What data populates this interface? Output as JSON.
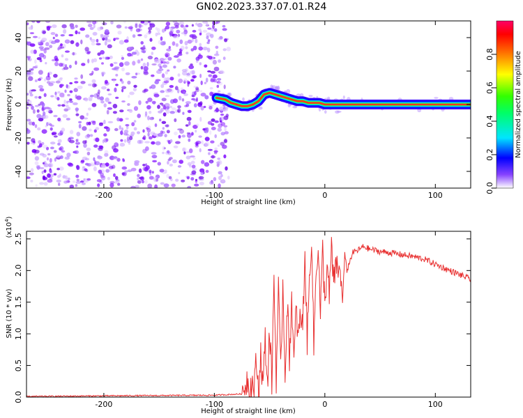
{
  "title": "GN02.2023.337.07.01.R24",
  "chart_data": [
    {
      "type": "heatmap",
      "xlabel": "Height of straight line (km)",
      "ylabel": "Frequency (Hz)",
      "xlim": [
        -270,
        132
      ],
      "ylim": [
        -50,
        50
      ],
      "x_ticks": [
        -200,
        -100,
        0,
        100
      ],
      "x_tick_labels": [
        "-200",
        "-100",
        "0",
        "100"
      ],
      "y_ticks": [
        -40,
        -20,
        0,
        20,
        40
      ],
      "y_tick_labels": [
        "-40",
        "-20",
        "0",
        "20",
        "40"
      ],
      "noise_region_x": [
        -270,
        -92
      ],
      "signal_trace": {
        "x": [
          -98,
          -90,
          -85,
          -80,
          -75,
          -70,
          -65,
          -60,
          -55,
          -50,
          -45,
          -40,
          -35,
          -30,
          -25,
          -20,
          -15,
          -10,
          -5,
          0,
          5,
          10,
          20,
          40,
          60,
          80,
          100,
          132
        ],
        "y": [
          4,
          3,
          1,
          0,
          -1,
          -1,
          0,
          2,
          6,
          7,
          6,
          5,
          4,
          3,
          2,
          2,
          1,
          1,
          1,
          0,
          0,
          0,
          0,
          0,
          0,
          0,
          0,
          0
        ]
      },
      "colorbar": {
        "label": "Normalized spectral amplitude",
        "range": [
          0.0,
          1.0
        ],
        "ticks": [
          0.0,
          0.2,
          0.4,
          0.6,
          0.8
        ],
        "tick_labels": [
          "0.0",
          "0.2",
          "0.4",
          "0.6",
          "0.8"
        ],
        "colors": [
          "#ffffff",
          "#6600ff",
          "#0000ff",
          "#00e5ff",
          "#00ff00",
          "#ffff00",
          "#ff8800",
          "#ff0000",
          "#ff0066"
        ]
      }
    },
    {
      "type": "line",
      "xlabel": "Height of straight line (km)",
      "ylabel": "SNR (10 * v/v)",
      "scale_label": "(x10",
      "scale_exp": "4",
      "scale_close": ")",
      "xlim": [
        -270,
        132
      ],
      "ylim": [
        0.0,
        2.62
      ],
      "x_ticks": [
        -200,
        -100,
        0,
        100
      ],
      "x_tick_labels": [
        "-200",
        "-100",
        "0",
        "100"
      ],
      "y_ticks": [
        0.0,
        0.5,
        1.0,
        1.5,
        2.0,
        2.5
      ],
      "y_tick_labels": [
        "0.0",
        "0.5",
        "1.0",
        "1.5",
        "2.0",
        "2.5"
      ],
      "color": "#e83030",
      "series": [
        {
          "x": [
            -270,
            -200,
            -100,
            -75,
            -70,
            -68,
            -66,
            -64,
            -62,
            -60,
            -58,
            -56,
            -54,
            -52,
            -50,
            -48,
            -46,
            -44,
            -42,
            -40,
            -38,
            -36,
            -34,
            -32,
            -30,
            -28,
            -26,
            -24,
            -22,
            -20,
            -18,
            -16,
            -14,
            -12,
            -10,
            -8,
            -6,
            -4,
            -2,
            0,
            2,
            4,
            6,
            8,
            10,
            12,
            14,
            16,
            18,
            20,
            25,
            30,
            35,
            40,
            50,
            60,
            70,
            80,
            90,
            100,
            110,
            120,
            132
          ],
          "y": [
            0.01,
            0.02,
            0.03,
            0.05,
            0.3,
            0.1,
            0.25,
            0.08,
            0.6,
            0.05,
            0.7,
            0.15,
            0.9,
            0.2,
            1.05,
            0.25,
            1.9,
            0.3,
            1.7,
            0.35,
            1.8,
            0.4,
            1.5,
            0.6,
            1.6,
            0.5,
            1.4,
            0.9,
            1.3,
            1.1,
            2.3,
            0.9,
            1.8,
            2.6,
            0.8,
            1.95,
            2.45,
            1.3,
            2.3,
            1.45,
            2.1,
            1.55,
            2.4,
            1.7,
            2.2,
            1.9,
            2.1,
            1.5,
            2.25,
            2.0,
            2.28,
            2.32,
            2.38,
            2.34,
            2.3,
            2.28,
            2.25,
            2.22,
            2.18,
            2.1,
            2.02,
            1.95,
            1.86
          ]
        }
      ]
    }
  ]
}
